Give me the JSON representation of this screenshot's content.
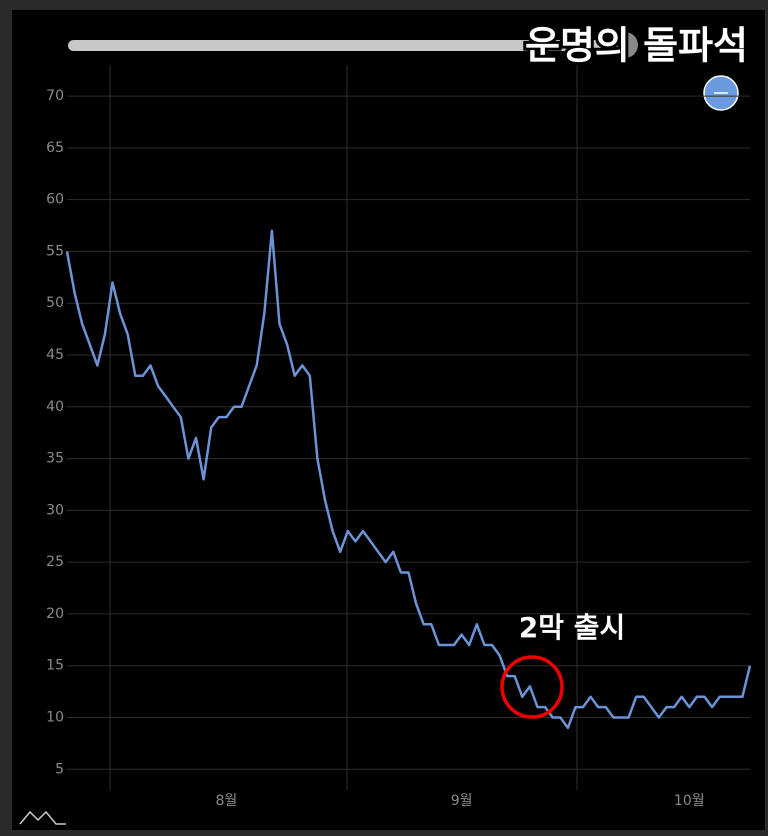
{
  "chart_data": {
    "type": "line",
    "title": "운명의 돌파석",
    "annotation": "2막 출시",
    "categories": [
      null,
      null,
      null,
      null,
      null,
      null,
      null,
      null,
      null,
      null,
      null,
      null,
      null,
      null,
      null,
      null,
      null,
      null,
      null,
      null,
      null,
      "8월",
      null,
      null,
      null,
      null,
      null,
      null,
      null,
      null,
      null,
      null,
      null,
      null,
      null,
      null,
      null,
      null,
      null,
      null,
      null,
      null,
      null,
      null,
      null,
      null,
      null,
      null,
      null,
      null,
      null,
      null,
      "9월",
      null,
      null,
      null,
      null,
      null,
      null,
      null,
      null,
      null,
      null,
      null,
      null,
      null,
      null,
      null,
      null,
      null,
      null,
      null,
      null,
      null,
      null,
      null,
      null,
      null,
      null,
      null,
      null,
      null,
      "10월",
      null,
      null,
      null,
      null,
      null,
      null,
      null,
      null
    ],
    "values": [
      55,
      51,
      48,
      46,
      44,
      47,
      52,
      49,
      47,
      43,
      43,
      44,
      42,
      41,
      40,
      39,
      35,
      37,
      33,
      38,
      39,
      39,
      40,
      40,
      42,
      44,
      49,
      57,
      48,
      46,
      43,
      44,
      43,
      35,
      31,
      28,
      26,
      28,
      27,
      28,
      27,
      26,
      25,
      26,
      24,
      24,
      21,
      19,
      19,
      17,
      17,
      17,
      18,
      17,
      19,
      17,
      17,
      16,
      14,
      14,
      12,
      13,
      11,
      11,
      10,
      10,
      9,
      11,
      11,
      12,
      11,
      11,
      10,
      10,
      10,
      12,
      12,
      11,
      10,
      11,
      11,
      12,
      11,
      12,
      12,
      11,
      12,
      12,
      12,
      12,
      15
    ],
    "color": "#6b93d6",
    "ylim": [
      3,
      73
    ],
    "yticks": [
      5,
      10,
      15,
      20,
      25,
      30,
      35,
      40,
      45,
      50,
      55,
      60,
      65,
      70
    ],
    "grid": true
  }
}
